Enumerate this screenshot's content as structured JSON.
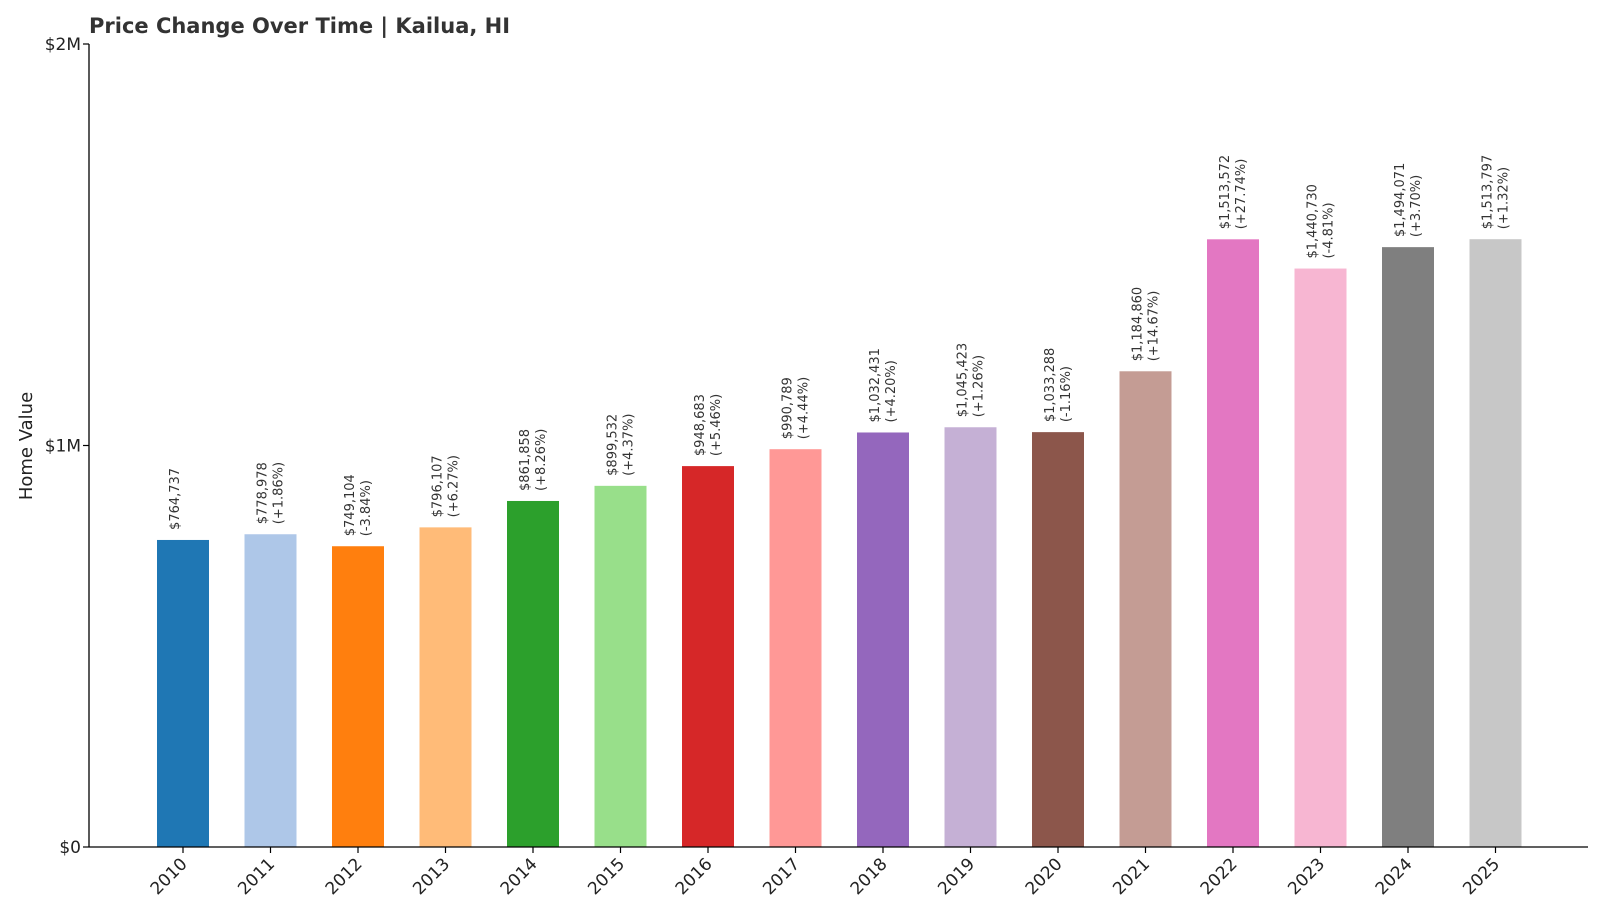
{
  "chart_data": {
    "type": "bar",
    "title": "Price Change Over Time | Kailua, HI",
    "xlabel": "",
    "ylabel": "Home Value",
    "ylim": [
      0,
      2000000
    ],
    "yticks": [
      {
        "value": 0,
        "label": "$0"
      },
      {
        "value": 1000000,
        "label": "$1M"
      },
      {
        "value": 2000000,
        "label": "$2M"
      }
    ],
    "categories": [
      "2010",
      "2011",
      "2012",
      "2013",
      "2014",
      "2015",
      "2016",
      "2017",
      "2018",
      "2019",
      "2020",
      "2021",
      "2022",
      "2023",
      "2024",
      "2025"
    ],
    "values": [
      764737,
      778978,
      749104,
      796107,
      861858,
      899532,
      948683,
      990789,
      1032431,
      1045423,
      1033288,
      1184860,
      1513572,
      1440730,
      1494071,
      1513797
    ],
    "value_labels": [
      "$764,737",
      "$778,978",
      "$749,104",
      "$796,107",
      "$861,858",
      "$899,532",
      "$948,683",
      "$990,789",
      "$1,032,431",
      "$1,045,423",
      "$1,033,288",
      "$1,184,860",
      "$1,513,572",
      "$1,440,730",
      "$1,494,071",
      "$1,513,797"
    ],
    "change_labels": [
      "",
      "(+1.86%)",
      "(-3.84%)",
      "(+6.27%)",
      "(+8.26%)",
      "(+4.37%)",
      "(+5.46%)",
      "(+4.44%)",
      "(+4.20%)",
      "(+1.26%)",
      "(-1.16%)",
      "(+14.67%)",
      "(+27.74%)",
      "(-4.81%)",
      "(+3.70%)",
      "(+1.32%)"
    ],
    "colors": [
      "#1f77b4",
      "#aec7e8",
      "#ff7f0e",
      "#ffbb78",
      "#2ca02c",
      "#98df8a",
      "#d62728",
      "#ff9896",
      "#9467bd",
      "#c5b0d5",
      "#8c564b",
      "#c49c94",
      "#e377c2",
      "#f7b6d2",
      "#7f7f7f",
      "#c7c7c7"
    ],
    "grid": false,
    "legend": "none"
  }
}
